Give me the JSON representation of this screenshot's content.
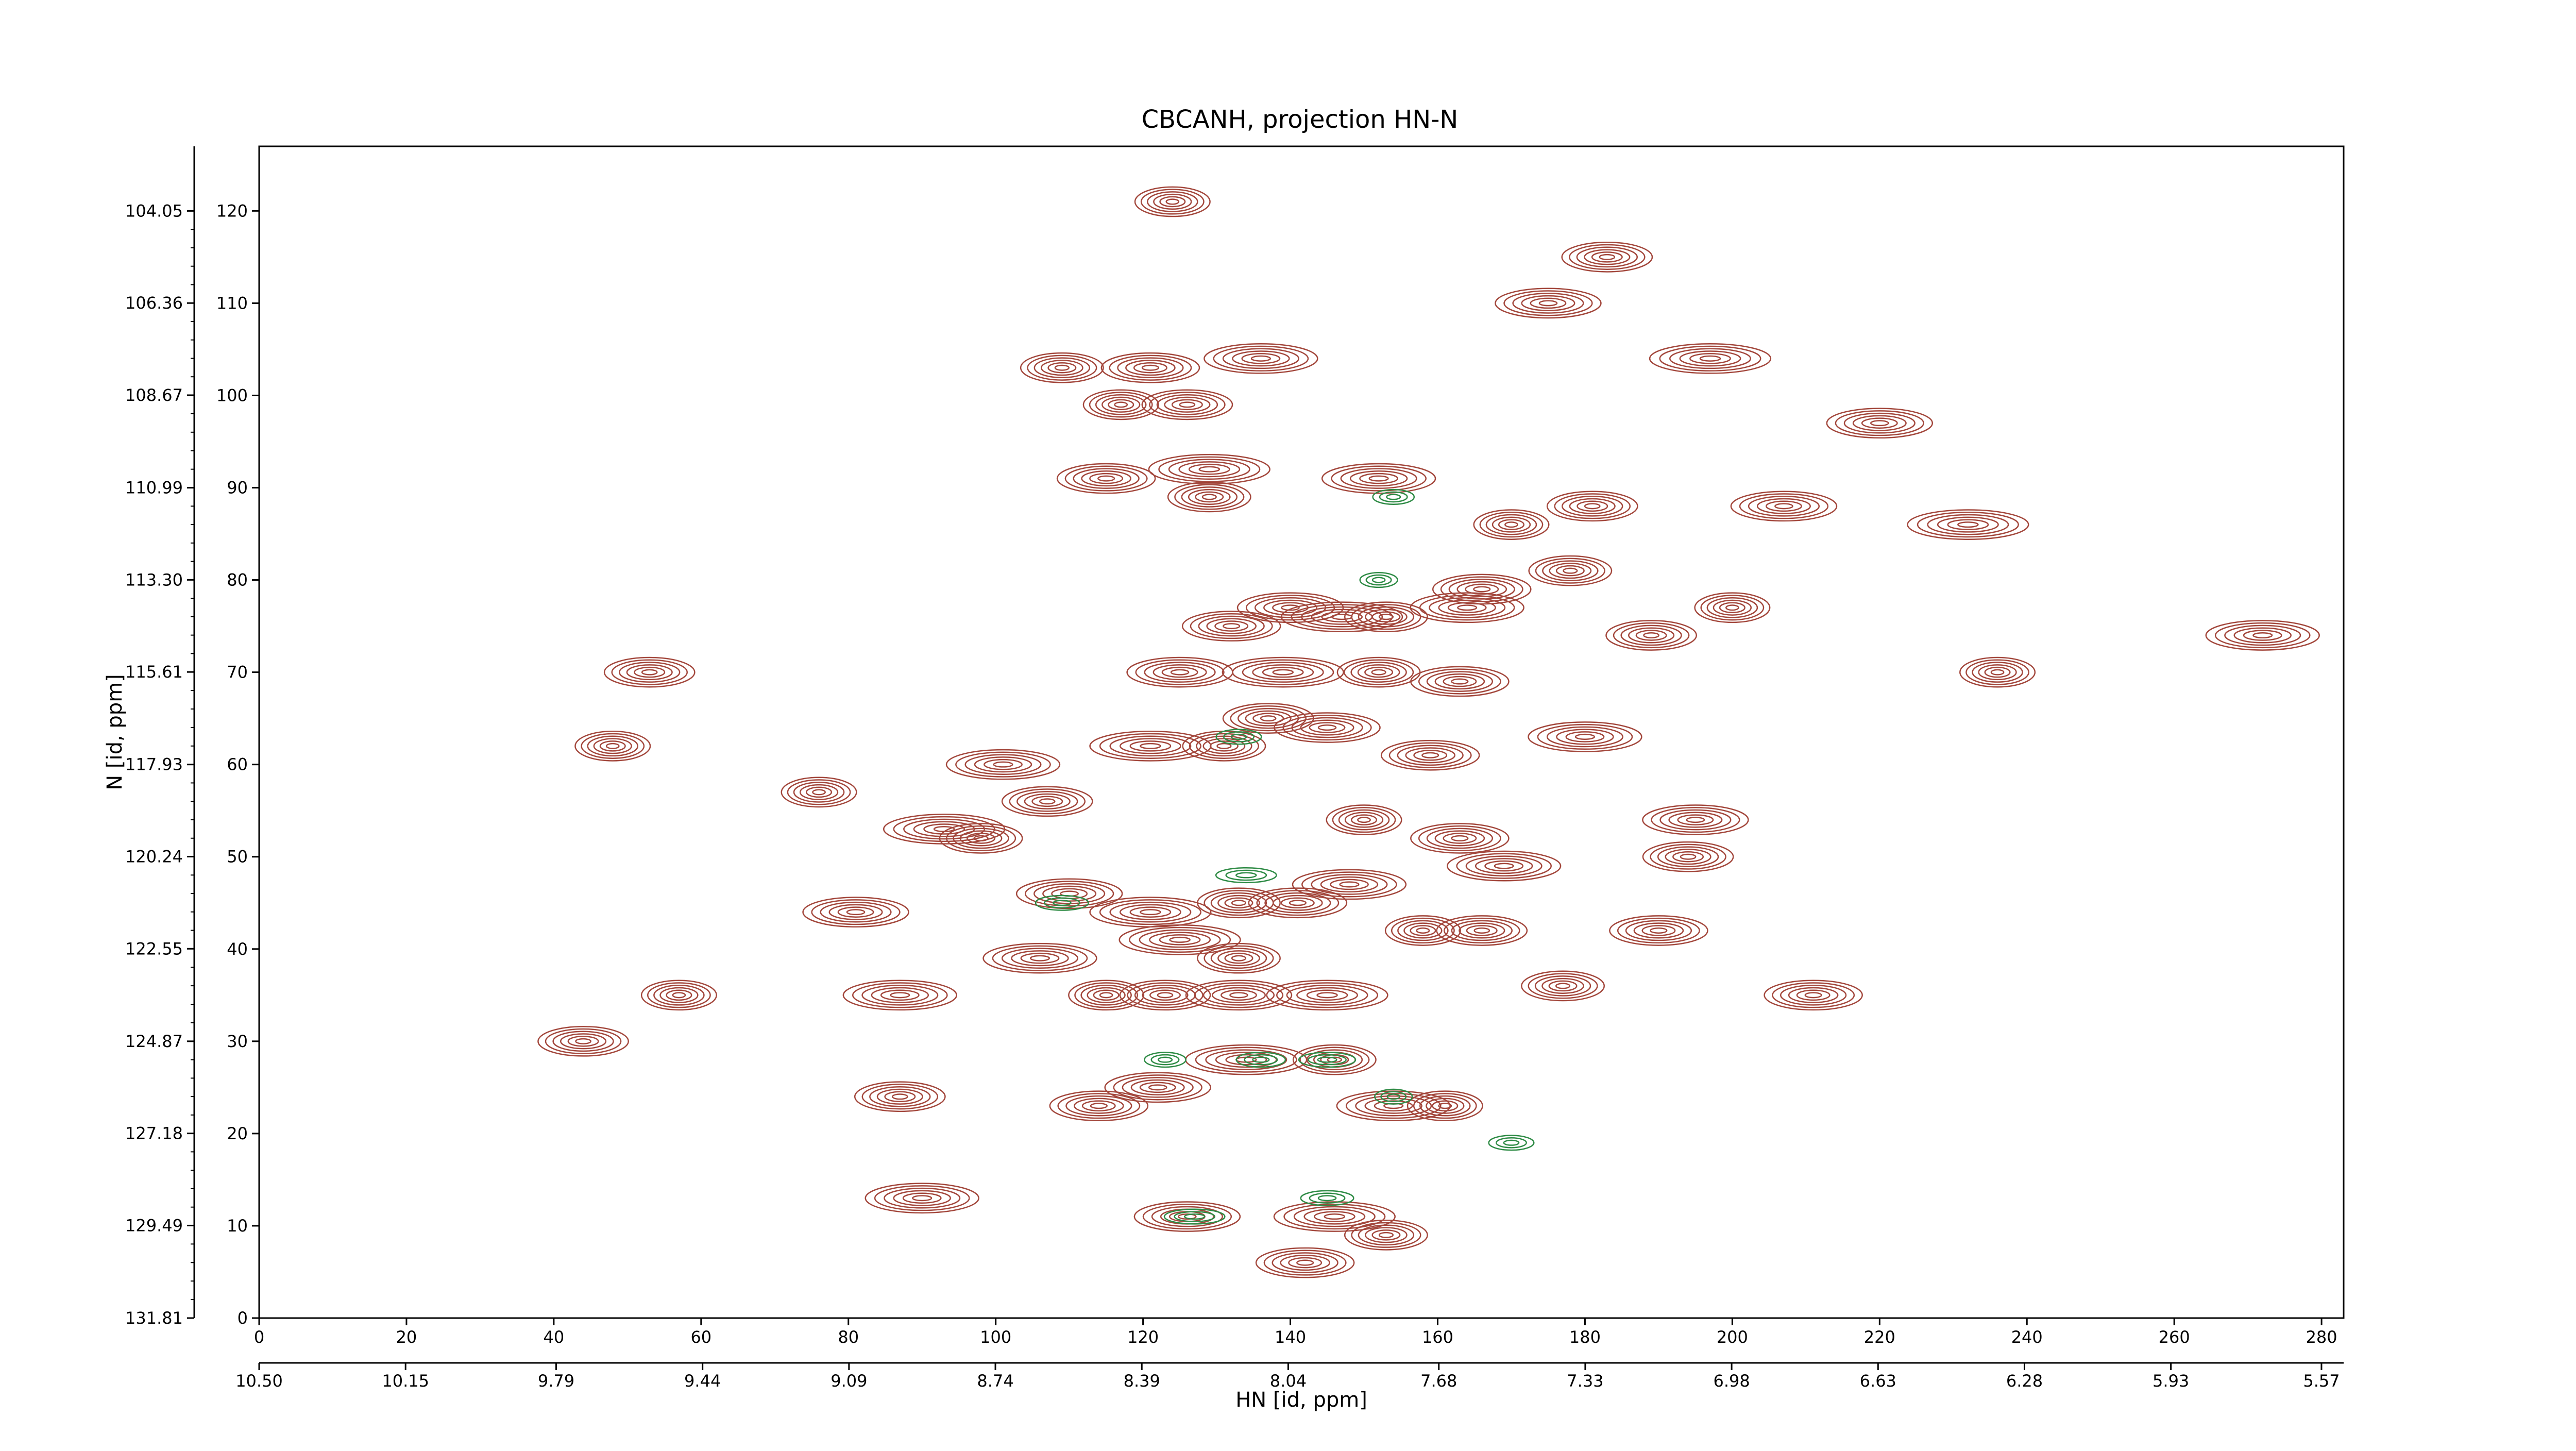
{
  "chart_data": {
    "type": "contour",
    "title": "CBCANH, projection HN-N",
    "x_label": "HN [id, ppm]",
    "y_label": "N [id, ppm]",
    "xlim": [
      0,
      283
    ],
    "ylim": [
      0,
      127
    ],
    "xticks": [
      0,
      20,
      40,
      60,
      80,
      100,
      120,
      140,
      160,
      180,
      200,
      220,
      240,
      260,
      280
    ],
    "yticks": [
      0,
      10,
      20,
      30,
      40,
      50,
      60,
      70,
      80,
      90,
      100,
      110,
      120
    ],
    "x2lim": [
      10.5,
      5.517
    ],
    "x2ticks": [
      {
        "value": 10.5,
        "label": "10.50"
      },
      10.15,
      9.79,
      9.44,
      9.09,
      8.74,
      8.39,
      8.04,
      7.68,
      7.33,
      6.98,
      6.63,
      6.28,
      5.93,
      5.57
    ],
    "y2lim": [
      131.81,
      102.43
    ],
    "y2ticks": [
      131.81,
      129.49,
      127.18,
      124.87,
      122.55,
      120.24,
      117.93,
      115.61,
      {
        "value": 113.3,
        "label": "113.30"
      },
      110.99,
      108.67,
      106.36,
      104.05
    ],
    "series": [
      {
        "color": "#a3473c",
        "x": [
          124,
          183,
          175,
          197,
          109,
          121,
          136,
          117,
          126,
          220,
          129,
          129,
          115,
          152,
          170,
          181,
          207,
          232,
          178,
          166,
          164,
          200,
          189,
          140,
          147,
          153,
          132,
          272,
          236,
          53,
          125,
          139,
          152,
          163,
          180,
          48,
          137,
          145,
          121,
          131,
          159,
          101,
          76,
          107,
          195,
          93,
          98,
          163,
          169,
          150,
          194,
          110,
          121,
          133,
          141,
          148,
          158,
          166,
          81,
          125,
          133,
          190,
          106,
          115,
          123,
          133,
          145,
          177,
          211,
          87,
          57,
          44,
          122,
          134,
          146,
          114,
          154,
          161,
          87,
          126,
          146,
          153,
          142,
          90
        ],
        "y": [
          121,
          115,
          110,
          104,
          103,
          103,
          104,
          99,
          99,
          97,
          92,
          89,
          91,
          91,
          86,
          88,
          88,
          86,
          81,
          79,
          77,
          77,
          74,
          77,
          76,
          76,
          75,
          74,
          70,
          70,
          70,
          70,
          70,
          69,
          63,
          62,
          65,
          64,
          62,
          62,
          61,
          60,
          57,
          56,
          54,
          53,
          52,
          52,
          49,
          54,
          50,
          46,
          44,
          45,
          45,
          47,
          42,
          42,
          44,
          41,
          39,
          42,
          39,
          35,
          35,
          35,
          35,
          36,
          35,
          35,
          35,
          30,
          25,
          28,
          28,
          23,
          23,
          23,
          24,
          11,
          11,
          9,
          6,
          13
        ]
      },
      {
        "color": "#2e8b45",
        "x": [
          152,
          133,
          109,
          134,
          123,
          136,
          145,
          154,
          170,
          145,
          127,
          154
        ],
        "y": [
          80,
          63,
          45,
          48,
          28,
          28,
          28,
          24,
          19,
          13,
          11,
          89
        ]
      }
    ]
  }
}
